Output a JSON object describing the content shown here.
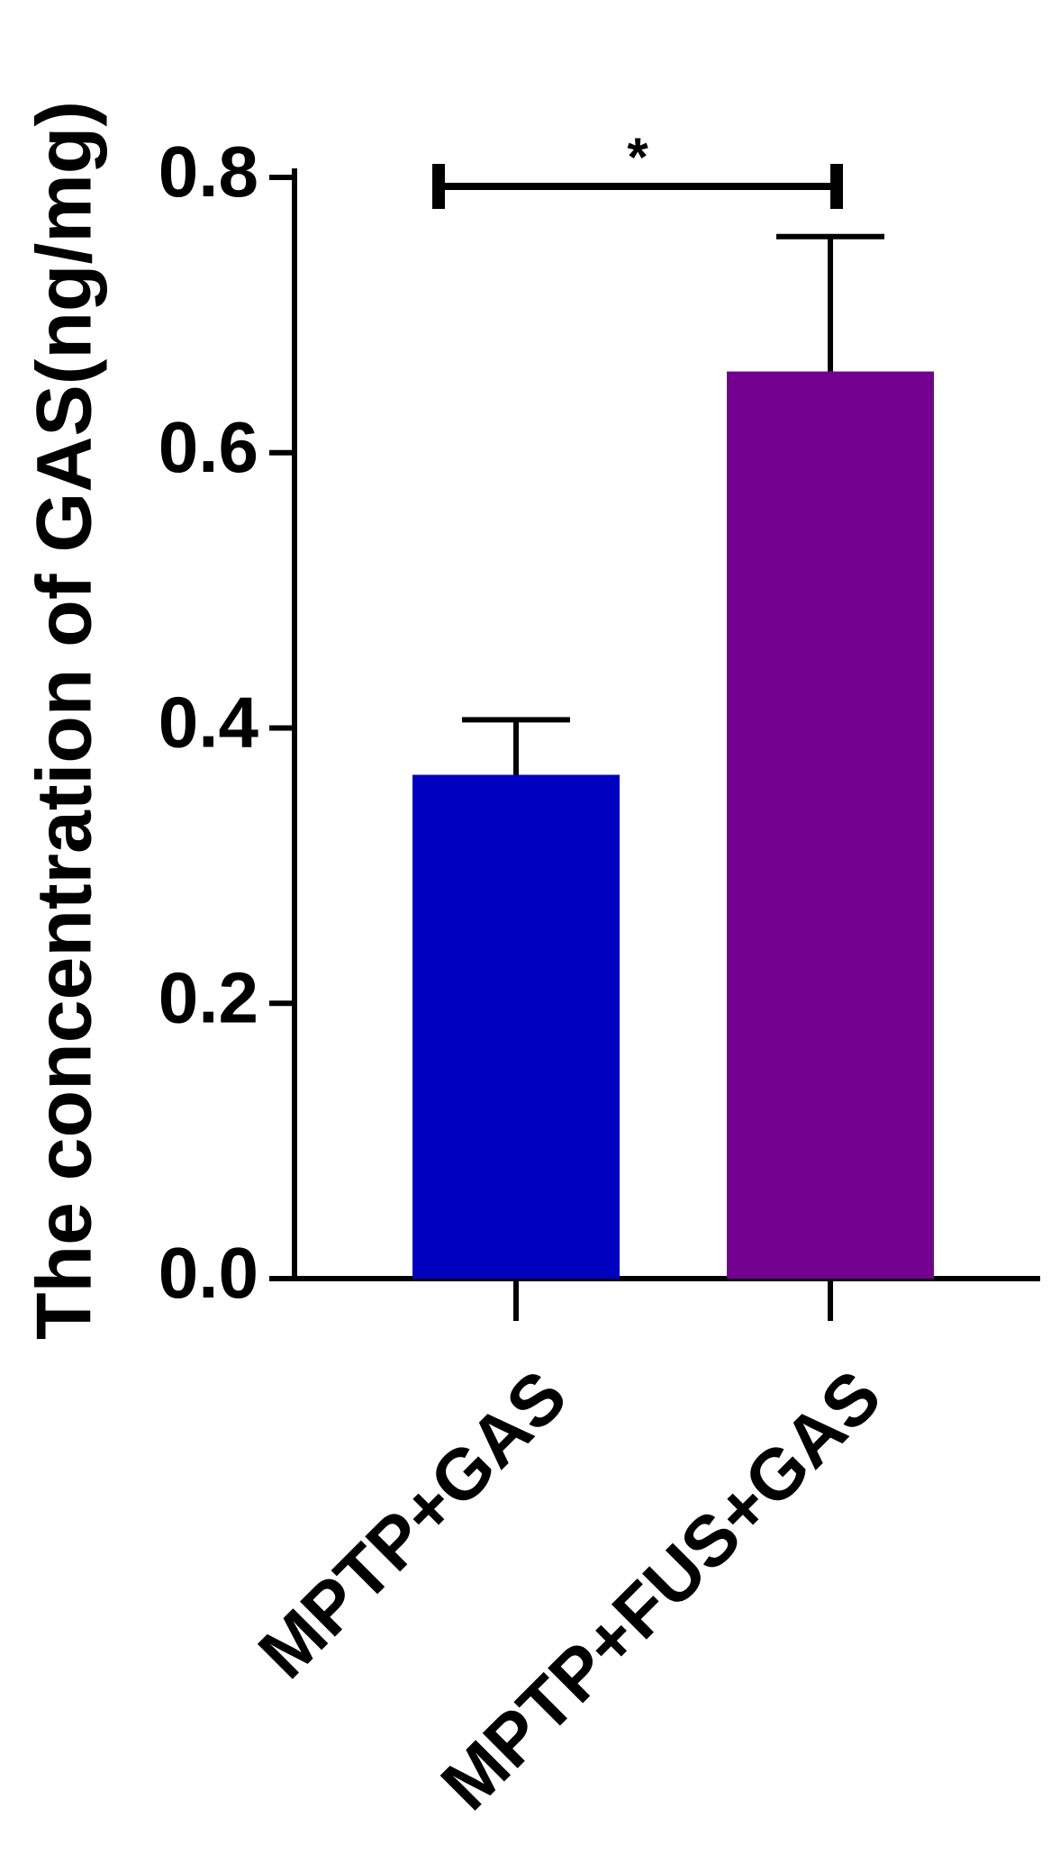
{
  "chart_data": {
    "type": "bar",
    "y_label": "The concentration of GAS(ng/mg)",
    "categories": [
      "MPTP+GAS",
      "MPTP+FUS+GAS"
    ],
    "values": [
      0.366,
      0.659
    ],
    "errors": [
      0.04,
      0.098
    ],
    "colors": [
      "#0000c0",
      "#740090"
    ],
    "ylim": [
      0,
      0.8
    ],
    "yticks": [
      {
        "value": 0,
        "label": "0.0"
      },
      0.2,
      0.4,
      0.6,
      0.8
    ],
    "annotation": "*"
  }
}
